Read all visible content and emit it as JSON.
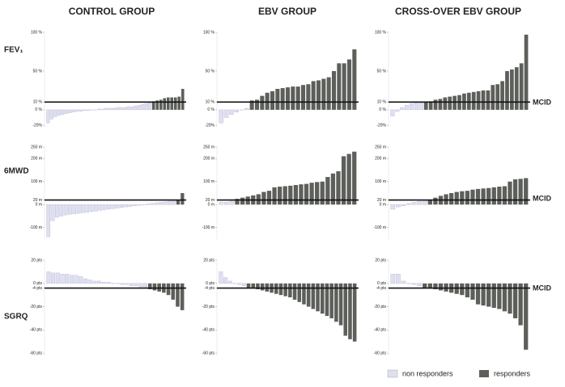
{
  "column_titles": [
    "CONTROL GROUP",
    "EBV GROUP",
    "CROSS-OVER EBV GROUP"
  ],
  "row_labels": [
    "FEV₁",
    "6MWD",
    "SGRQ"
  ],
  "mcid_label": "MCID",
  "legend": [
    {
      "name": "non responders",
      "color": "#dedff0"
    },
    {
      "name": "responders",
      "color": "#5c5f5a"
    }
  ],
  "chart_data": [
    {
      "type": "bar",
      "ylim": [
        -22,
        100
      ],
      "threshold": 10,
      "direction": "up",
      "yticks": [
        {
          "value": 100,
          "label": "100 %"
        },
        {
          "value": 50,
          "label": "50 %"
        },
        {
          "value": 10,
          "label": "10 %"
        },
        {
          "value": 0,
          "label": "0 %"
        },
        {
          "value": -20,
          "label": "-20%"
        }
      ],
      "values": [
        -17,
        -12,
        -9,
        -7,
        -6,
        -5,
        -4,
        -3,
        -2,
        -2,
        -1,
        -1,
        0,
        0,
        1,
        1,
        2,
        2,
        2,
        3,
        3,
        3,
        4,
        4,
        5,
        6,
        7,
        8,
        9,
        11,
        12,
        13,
        15,
        16,
        16,
        16,
        17,
        27
      ]
    },
    {
      "type": "bar",
      "ylim": [
        -22,
        100
      ],
      "threshold": 10,
      "direction": "up",
      "yticks": [
        {
          "value": 100,
          "label": "100 %"
        },
        {
          "value": 50,
          "label": "50 %"
        },
        {
          "value": 10,
          "label": "10 %"
        },
        {
          "value": 0,
          "label": "0 %"
        },
        {
          "value": -20,
          "label": "-20%"
        }
      ],
      "values": [
        -17,
        -10,
        -6,
        -3,
        0,
        2,
        12,
        13,
        18,
        22,
        24,
        27,
        28,
        29,
        30,
        30,
        32,
        33,
        37,
        38,
        40,
        42,
        50,
        60,
        60,
        65,
        78
      ]
    },
    {
      "type": "bar",
      "ylim": [
        -22,
        100
      ],
      "threshold": 10,
      "direction": "up",
      "yticks": [
        {
          "value": 100,
          "label": "100 %"
        },
        {
          "value": 50,
          "label": "50 %"
        },
        {
          "value": 10,
          "label": "10 %"
        },
        {
          "value": 0,
          "label": "0 %"
        },
        {
          "value": -20,
          "label": "-20%"
        }
      ],
      "values": [
        -8,
        -2,
        3,
        6,
        8,
        9,
        9,
        10,
        11,
        13,
        14,
        16,
        17,
        18,
        19,
        21,
        22,
        23,
        24,
        25,
        25,
        32,
        33,
        37,
        50,
        52,
        55,
        60,
        97
      ]
    },
    {
      "type": "bar",
      "ylim": [
        -150,
        250
      ],
      "threshold": 20,
      "direction": "up",
      "yticks": [
        {
          "value": 250,
          "label": "250 m"
        },
        {
          "value": 200,
          "label": "200 m"
        },
        {
          "value": 100,
          "label": "100 m"
        },
        {
          "value": 20,
          "label": "20 m"
        },
        {
          "value": 0,
          "label": "0 m"
        },
        {
          "value": -100,
          "label": "-100 m"
        }
      ],
      "values": [
        -140,
        -70,
        -55,
        -50,
        -45,
        -42,
        -40,
        -38,
        -35,
        -33,
        -30,
        -28,
        -25,
        -22,
        -20,
        -18,
        -15,
        -12,
        -10,
        -8,
        -5,
        -3,
        0,
        3,
        5,
        8,
        10,
        12,
        15,
        18,
        22,
        50
      ]
    },
    {
      "type": "bar",
      "ylim": [
        -150,
        250
      ],
      "threshold": 20,
      "direction": "up",
      "yticks": [
        {
          "value": 250,
          "label": "250 m"
        },
        {
          "value": 200,
          "label": "200 m"
        },
        {
          "value": 100,
          "label": "100 m"
        },
        {
          "value": 20,
          "label": "20 m"
        },
        {
          "value": 0,
          "label": "0 m"
        },
        {
          "value": -100,
          "label": "-100 m"
        }
      ],
      "values": [
        10,
        10,
        15,
        25,
        30,
        35,
        40,
        45,
        55,
        60,
        75,
        78,
        80,
        82,
        85,
        88,
        90,
        95,
        98,
        100,
        120,
        135,
        145,
        210,
        220,
        230
      ]
    },
    {
      "type": "bar",
      "ylim": [
        -150,
        250
      ],
      "threshold": 20,
      "direction": "up",
      "yticks": [
        {
          "value": 250,
          "label": "250 m"
        },
        {
          "value": 200,
          "label": "200 m"
        },
        {
          "value": 100,
          "label": "100 m"
        },
        {
          "value": 20,
          "label": "20 m"
        },
        {
          "value": 0,
          "label": "0 m"
        },
        {
          "value": -100,
          "label": "-100 m"
        }
      ],
      "values": [
        -20,
        -10,
        -5,
        5,
        10,
        15,
        18,
        22,
        30,
        38,
        45,
        50,
        55,
        58,
        60,
        65,
        68,
        70,
        72,
        75,
        78,
        80,
        100,
        110,
        112,
        115
      ]
    },
    {
      "type": "bar",
      "ylim": [
        -62,
        20
      ],
      "threshold": -4,
      "direction": "down",
      "yticks": [
        {
          "value": 20,
          "label": "20 pts"
        },
        {
          "value": 0,
          "label": "0 pts"
        },
        {
          "value": -4,
          "label": "-4 pts"
        },
        {
          "value": -20,
          "label": "-20 pts"
        },
        {
          "value": -40,
          "label": "-40 pts"
        },
        {
          "value": -60,
          "label": "-60 pts"
        }
      ],
      "values": [
        10,
        9,
        9,
        8,
        8,
        7,
        7,
        6,
        4,
        3,
        2,
        2,
        1,
        1,
        0,
        0,
        -1,
        -1,
        -2,
        -2,
        -3,
        -3,
        -5,
        -6,
        -7,
        -8,
        -10,
        -14,
        -20,
        -23
      ]
    },
    {
      "type": "bar",
      "ylim": [
        -62,
        20
      ],
      "threshold": -4,
      "direction": "down",
      "yticks": [
        {
          "value": 20,
          "label": "20 pts"
        },
        {
          "value": 0,
          "label": "0 pts"
        },
        {
          "value": -4,
          "label": "-4 pts"
        },
        {
          "value": -20,
          "label": "-20 pts"
        },
        {
          "value": -40,
          "label": "-40 pts"
        },
        {
          "value": -60,
          "label": "-60 pts"
        }
      ],
      "values": [
        10,
        5,
        2,
        0,
        -1,
        -2,
        -4,
        -4,
        -5,
        -6,
        -7,
        -8,
        -9,
        -10,
        -11,
        -12,
        -14,
        -16,
        -18,
        -20,
        -22,
        -24,
        -26,
        -28,
        -30,
        -33,
        -36,
        -45,
        -48,
        -50
      ]
    },
    {
      "type": "bar",
      "ylim": [
        -62,
        20
      ],
      "threshold": -4,
      "direction": "down",
      "yticks": [
        {
          "value": 20,
          "label": "20 pts"
        },
        {
          "value": 0,
          "label": "0 pts"
        },
        {
          "value": -4,
          "label": "-4 pts"
        },
        {
          "value": -20,
          "label": "-20 pts"
        },
        {
          "value": -40,
          "label": "-40 pts"
        },
        {
          "value": -60,
          "label": "-60 pts"
        }
      ],
      "values": [
        8,
        8,
        2,
        0,
        -1,
        -2,
        -4,
        -4,
        -5,
        -6,
        -7,
        -8,
        -9,
        -10,
        -12,
        -14,
        -18,
        -19,
        -20,
        -21,
        -22,
        -24,
        -26,
        -30,
        -36,
        -57
      ]
    }
  ]
}
